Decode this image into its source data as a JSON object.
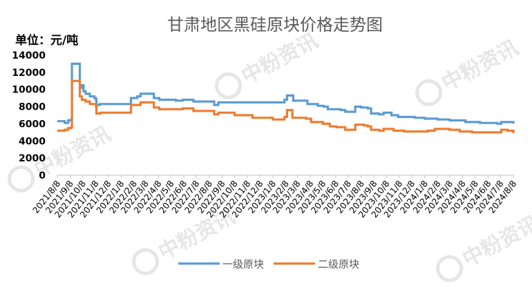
{
  "watermark": {
    "text": "中粉资讯"
  },
  "unit_label": "单位：元/吨",
  "chart_data": {
    "type": "line",
    "title": "甘肃地区黑硅原块价格走势图",
    "xlabel": "",
    "ylabel": "",
    "ylim": [
      0,
      14000
    ],
    "yticks": [
      "0",
      "2000",
      "4000",
      "6000",
      "8000",
      "10000",
      "12000",
      "14000"
    ],
    "xlim": [
      "2021/8/8",
      "2024/8/8"
    ],
    "x_tick_labels": [
      "2021/8/8",
      "2021/9/8",
      "2021/10/8",
      "2021/11/8",
      "2021/12/8",
      "2022/1/8",
      "2022/2/8",
      "2022/3/8",
      "2022/4/8",
      "2022/5/8",
      "2022/6/8",
      "2022/7/8",
      "2022/8/8",
      "2022/9/8",
      "2022/10/8",
      "2022/11/8",
      "2022/12/8",
      "2023/1/8",
      "2023/2/8",
      "2023/3/8",
      "2023/4/8",
      "2023/5/8",
      "2023/6/8",
      "2023/7/8",
      "2023/8/8",
      "2023/9/8",
      "2023/10/8",
      "2023/11/8",
      "2023/12/8",
      "2024/1/8",
      "2024/2/8",
      "2024/3/8",
      "2024/4/8",
      "2024/5/8",
      "2024/6/8",
      "2024/7/8",
      "2024/8/8"
    ],
    "grid": false,
    "legend_position": "bottom",
    "series": [
      {
        "name": "一级原块",
        "color": "#5b9bd5",
        "points": [
          [
            "2021/8/8",
            6300
          ],
          [
            "2021/8/20",
            6300
          ],
          [
            "2021/8/26",
            6100
          ],
          [
            "2021/9/3",
            6400
          ],
          [
            "2021/9/10",
            6500
          ],
          [
            "2021/9/12",
            13000
          ],
          [
            "2021/9/28",
            13000
          ],
          [
            "2021/10/1",
            10200
          ],
          [
            "2021/10/6",
            10500
          ],
          [
            "2021/10/10",
            9800
          ],
          [
            "2021/10/15",
            9500
          ],
          [
            "2021/10/25",
            9200
          ],
          [
            "2021/11/5",
            9000
          ],
          [
            "2021/11/9",
            8800
          ],
          [
            "2021/11/10",
            8200
          ],
          [
            "2021/11/18",
            8300
          ],
          [
            "2022/1/10",
            8300
          ],
          [
            "2022/1/28",
            8300
          ],
          [
            "2022/2/1",
            9000
          ],
          [
            "2022/2/16",
            9200
          ],
          [
            "2022/2/24",
            9500
          ],
          [
            "2022/3/24",
            9500
          ],
          [
            "2022/3/28",
            9000
          ],
          [
            "2022/4/10",
            8800
          ],
          [
            "2022/5/20",
            8700
          ],
          [
            "2022/6/5",
            8800
          ],
          [
            "2022/7/1",
            8600
          ],
          [
            "2022/8/15",
            8600
          ],
          [
            "2022/8/20",
            8200
          ],
          [
            "2022/8/30",
            8500
          ],
          [
            "2023/1/29",
            8500
          ],
          [
            "2023/2/5",
            8800
          ],
          [
            "2023/2/11",
            9300
          ],
          [
            "2023/2/22",
            9300
          ],
          [
            "2023/2/26",
            8700
          ],
          [
            "2023/3/29",
            8700
          ],
          [
            "2023/4/1",
            8300
          ],
          [
            "2023/4/26",
            8100
          ],
          [
            "2023/5/10",
            8000
          ],
          [
            "2023/5/20",
            7700
          ],
          [
            "2023/6/20",
            7600
          ],
          [
            "2023/7/1",
            7400
          ],
          [
            "2023/7/22",
            7400
          ],
          [
            "2023/7/25",
            8000
          ],
          [
            "2023/8/8",
            7900
          ],
          [
            "2023/8/24",
            7800
          ],
          [
            "2023/9/1",
            7200
          ],
          [
            "2023/9/20",
            7100
          ],
          [
            "2023/10/1",
            7300
          ],
          [
            "2023/10/12",
            7300
          ],
          [
            "2023/10/20",
            7000
          ],
          [
            "2023/11/5",
            6800
          ],
          [
            "2023/12/15",
            6700
          ],
          [
            "2024/1/8",
            6600
          ],
          [
            "2024/2/8",
            6500
          ],
          [
            "2024/3/8",
            6400
          ],
          [
            "2024/4/15",
            6200
          ],
          [
            "2024/5/20",
            6100
          ],
          [
            "2024/7/1",
            6000
          ],
          [
            "2024/7/10",
            6200
          ],
          [
            "2024/7/25",
            6200
          ],
          [
            "2024/8/8",
            6000
          ]
        ]
      },
      {
        "name": "二级原块",
        "color": "#ed7d31",
        "points": [
          [
            "2021/8/8",
            5200
          ],
          [
            "2021/8/20",
            5200
          ],
          [
            "2021/8/26",
            5300
          ],
          [
            "2021/9/3",
            5500
          ],
          [
            "2021/9/10",
            5600
          ],
          [
            "2021/9/12",
            11000
          ],
          [
            "2021/9/28",
            11000
          ],
          [
            "2021/10/1",
            9200
          ],
          [
            "2021/10/6",
            8800
          ],
          [
            "2021/10/15",
            8600
          ],
          [
            "2021/10/25",
            8300
          ],
          [
            "2021/11/9",
            8000
          ],
          [
            "2021/11/10",
            7200
          ],
          [
            "2021/11/20",
            7300
          ],
          [
            "2022/1/28",
            7300
          ],
          [
            "2022/2/1",
            8200
          ],
          [
            "2022/2/24",
            8500
          ],
          [
            "2022/3/24",
            8500
          ],
          [
            "2022/3/28",
            7900
          ],
          [
            "2022/4/10",
            7700
          ],
          [
            "2022/5/20",
            7700
          ],
          [
            "2022/6/5",
            7800
          ],
          [
            "2022/7/1",
            7500
          ],
          [
            "2022/8/15",
            7500
          ],
          [
            "2022/8/20",
            7100
          ],
          [
            "2022/8/30",
            7300
          ],
          [
            "2022/10/8",
            7000
          ],
          [
            "2022/11/20",
            6700
          ],
          [
            "2023/1/8",
            6500
          ],
          [
            "2023/1/29",
            6500
          ],
          [
            "2023/2/5",
            6800
          ],
          [
            "2023/2/11",
            7600
          ],
          [
            "2023/2/20",
            7600
          ],
          [
            "2023/2/24",
            6700
          ],
          [
            "2023/3/29",
            6600
          ],
          [
            "2023/4/10",
            6200
          ],
          [
            "2023/5/8",
            6000
          ],
          [
            "2023/5/25",
            5700
          ],
          [
            "2023/6/10",
            5600
          ],
          [
            "2023/7/1",
            5300
          ],
          [
            "2023/7/22",
            5300
          ],
          [
            "2023/7/25",
            5900
          ],
          [
            "2023/8/15",
            5800
          ],
          [
            "2023/8/24",
            5700
          ],
          [
            "2023/9/1",
            5300
          ],
          [
            "2023/9/20",
            5200
          ],
          [
            "2023/10/1",
            5400
          ],
          [
            "2023/10/12",
            5400
          ],
          [
            "2023/10/25",
            5200
          ],
          [
            "2023/11/20",
            5100
          ],
          [
            "2024/1/15",
            5200
          ],
          [
            "2024/2/1",
            5400
          ],
          [
            "2024/3/8",
            5300
          ],
          [
            "2024/4/1",
            5100
          ],
          [
            "2024/5/1",
            5000
          ],
          [
            "2024/7/1",
            5000
          ],
          [
            "2024/7/10",
            5300
          ],
          [
            "2024/7/25",
            5200
          ],
          [
            "2024/8/8",
            4900
          ]
        ]
      }
    ]
  }
}
